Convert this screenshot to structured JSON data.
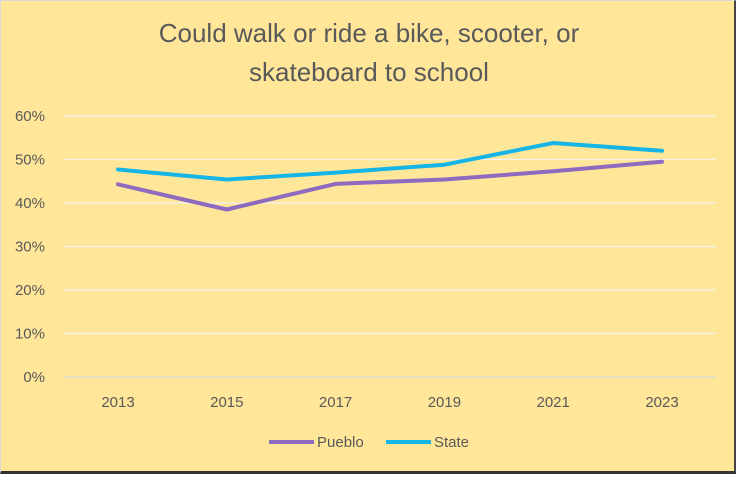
{
  "chart_data": {
    "type": "line",
    "title_lines": [
      "Could walk or ride a bike, scooter, or",
      "skateboard to school"
    ],
    "categories": [
      "2013",
      "2015",
      "2017",
      "2019",
      "2021",
      "2023"
    ],
    "y_ticks": [
      "0%",
      "10%",
      "20%",
      "30%",
      "40%",
      "50%",
      "60%"
    ],
    "ylim": [
      0,
      60
    ],
    "grid": true,
    "legend_position": "bottom",
    "series": [
      {
        "name": "Pueblo",
        "color": "#8E6BBF",
        "values": [
          44.3,
          38.5,
          44.4,
          45.4,
          47.3,
          49.5
        ]
      },
      {
        "name": "State",
        "color": "#17B5E6",
        "values": [
          47.7,
          45.4,
          47.0,
          48.8,
          53.8,
          52.0
        ]
      }
    ],
    "colors": {
      "background": "#FFE699",
      "grid": "#F2F2F2",
      "text": "#595959"
    }
  }
}
